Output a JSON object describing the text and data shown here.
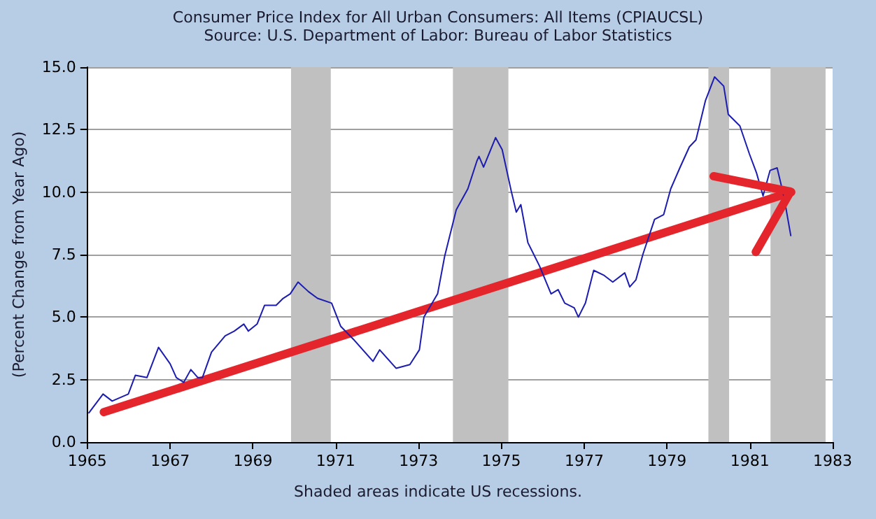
{
  "chart_data": {
    "type": "line",
    "title": "Consumer Price Index for All Urban Consumers: All Items (CPIAUCSL)",
    "subtitle": "Source: U.S. Department of Labor: Bureau of Labor Statistics",
    "ylabel": "(Percent Change from Year Ago)",
    "annotations": [
      "Shaded areas indicate US recessions."
    ],
    "series": [
      {
        "color": "#1c1cb0",
        "x": [
          1965.04,
          1965.38,
          1965.6,
          1965.99,
          1966.16,
          1966.44,
          1966.72,
          1967.0,
          1967.15,
          1967.33,
          1967.5,
          1967.67,
          1967.78,
          1968.0,
          1968.33,
          1968.55,
          1968.78,
          1968.89,
          1969.1,
          1969.28,
          1969.56,
          1969.73,
          1969.9,
          1970.09,
          1970.34,
          1970.56,
          1970.9,
          1971.12,
          1971.45,
          1971.9,
          1972.06,
          1972.46,
          1972.79,
          1973.02,
          1973.13,
          1973.46,
          1973.63,
          1973.91,
          1974.19,
          1974.41,
          1974.46,
          1974.57,
          1974.86,
          1975.02,
          1975.24,
          1975.36,
          1975.47,
          1975.64,
          1975.92,
          1976.2,
          1976.37,
          1976.53,
          1976.76,
          1976.86,
          1977.03,
          1977.23,
          1977.47,
          1977.69,
          1977.98,
          1978.1,
          1978.25,
          1978.42,
          1978.7,
          1978.92,
          1979.09,
          1979.31,
          1979.54,
          1979.7,
          1979.93,
          1980.15,
          1980.37,
          1980.48,
          1980.76,
          1980.99,
          1981.16,
          1981.32,
          1981.49,
          1981.66,
          1981.82,
          1981.99
        ],
        "values": [
          1.17,
          1.92,
          1.64,
          1.92,
          2.67,
          2.58,
          3.79,
          3.13,
          2.58,
          2.39,
          2.9,
          2.58,
          2.58,
          3.6,
          4.25,
          4.44,
          4.72,
          4.44,
          4.72,
          5.47,
          5.47,
          5.75,
          5.93,
          6.4,
          6.02,
          5.75,
          5.56,
          4.63,
          4.07,
          3.23,
          3.69,
          2.95,
          3.1,
          3.69,
          5.0,
          5.93,
          7.43,
          9.29,
          10.13,
          11.25,
          11.43,
          11.0,
          12.18,
          11.7,
          10.03,
          9.2,
          9.5,
          7.98,
          7.05,
          5.93,
          6.1,
          5.56,
          5.37,
          5.0,
          5.56,
          6.87,
          6.68,
          6.4,
          6.77,
          6.21,
          6.49,
          7.52,
          8.91,
          9.1,
          10.13,
          10.97,
          11.81,
          12.09,
          13.67,
          14.61,
          14.24,
          13.11,
          12.65,
          11.53,
          10.78,
          9.85,
          10.87,
          10.97,
          9.85,
          8.26
        ]
      },
      {
        "color": "#e4262c",
        "x": [
          1965.4,
          1982.0
        ],
        "values": [
          1.2,
          10.0
        ]
      }
    ],
    "xlim": [
      1965,
      1983
    ],
    "xticks": [
      1965,
      1967,
      1969,
      1971,
      1973,
      1975,
      1977,
      1979,
      1981,
      1983
    ],
    "ylim": [
      0,
      15
    ],
    "yticks": [
      {
        "value": 0,
        "label": "0.0"
      },
      {
        "value": 2.5,
        "label": "2.5"
      },
      {
        "value": 5,
        "label": "5.0"
      },
      {
        "value": 7.5,
        "label": "7.5"
      },
      {
        "value": 10,
        "label": "10.0"
      },
      {
        "value": 12.5,
        "label": "12.5"
      },
      {
        "value": 15,
        "label": "15.0"
      }
    ],
    "bands": [
      {
        "axis": "x",
        "from": 1969.92,
        "to": 1970.88,
        "color": "#c0c0c0"
      },
      {
        "axis": "x",
        "from": 1973.83,
        "to": 1975.17,
        "color": "#c0c0c0"
      },
      {
        "axis": "x",
        "from": 1980.0,
        "to": 1980.5,
        "color": "#c0c0c0"
      },
      {
        "axis": "x",
        "from": 1981.5,
        "to": 1982.83,
        "color": "#c0c0c0"
      }
    ],
    "grid": "y",
    "marker": "none",
    "line_style": "solid"
  }
}
